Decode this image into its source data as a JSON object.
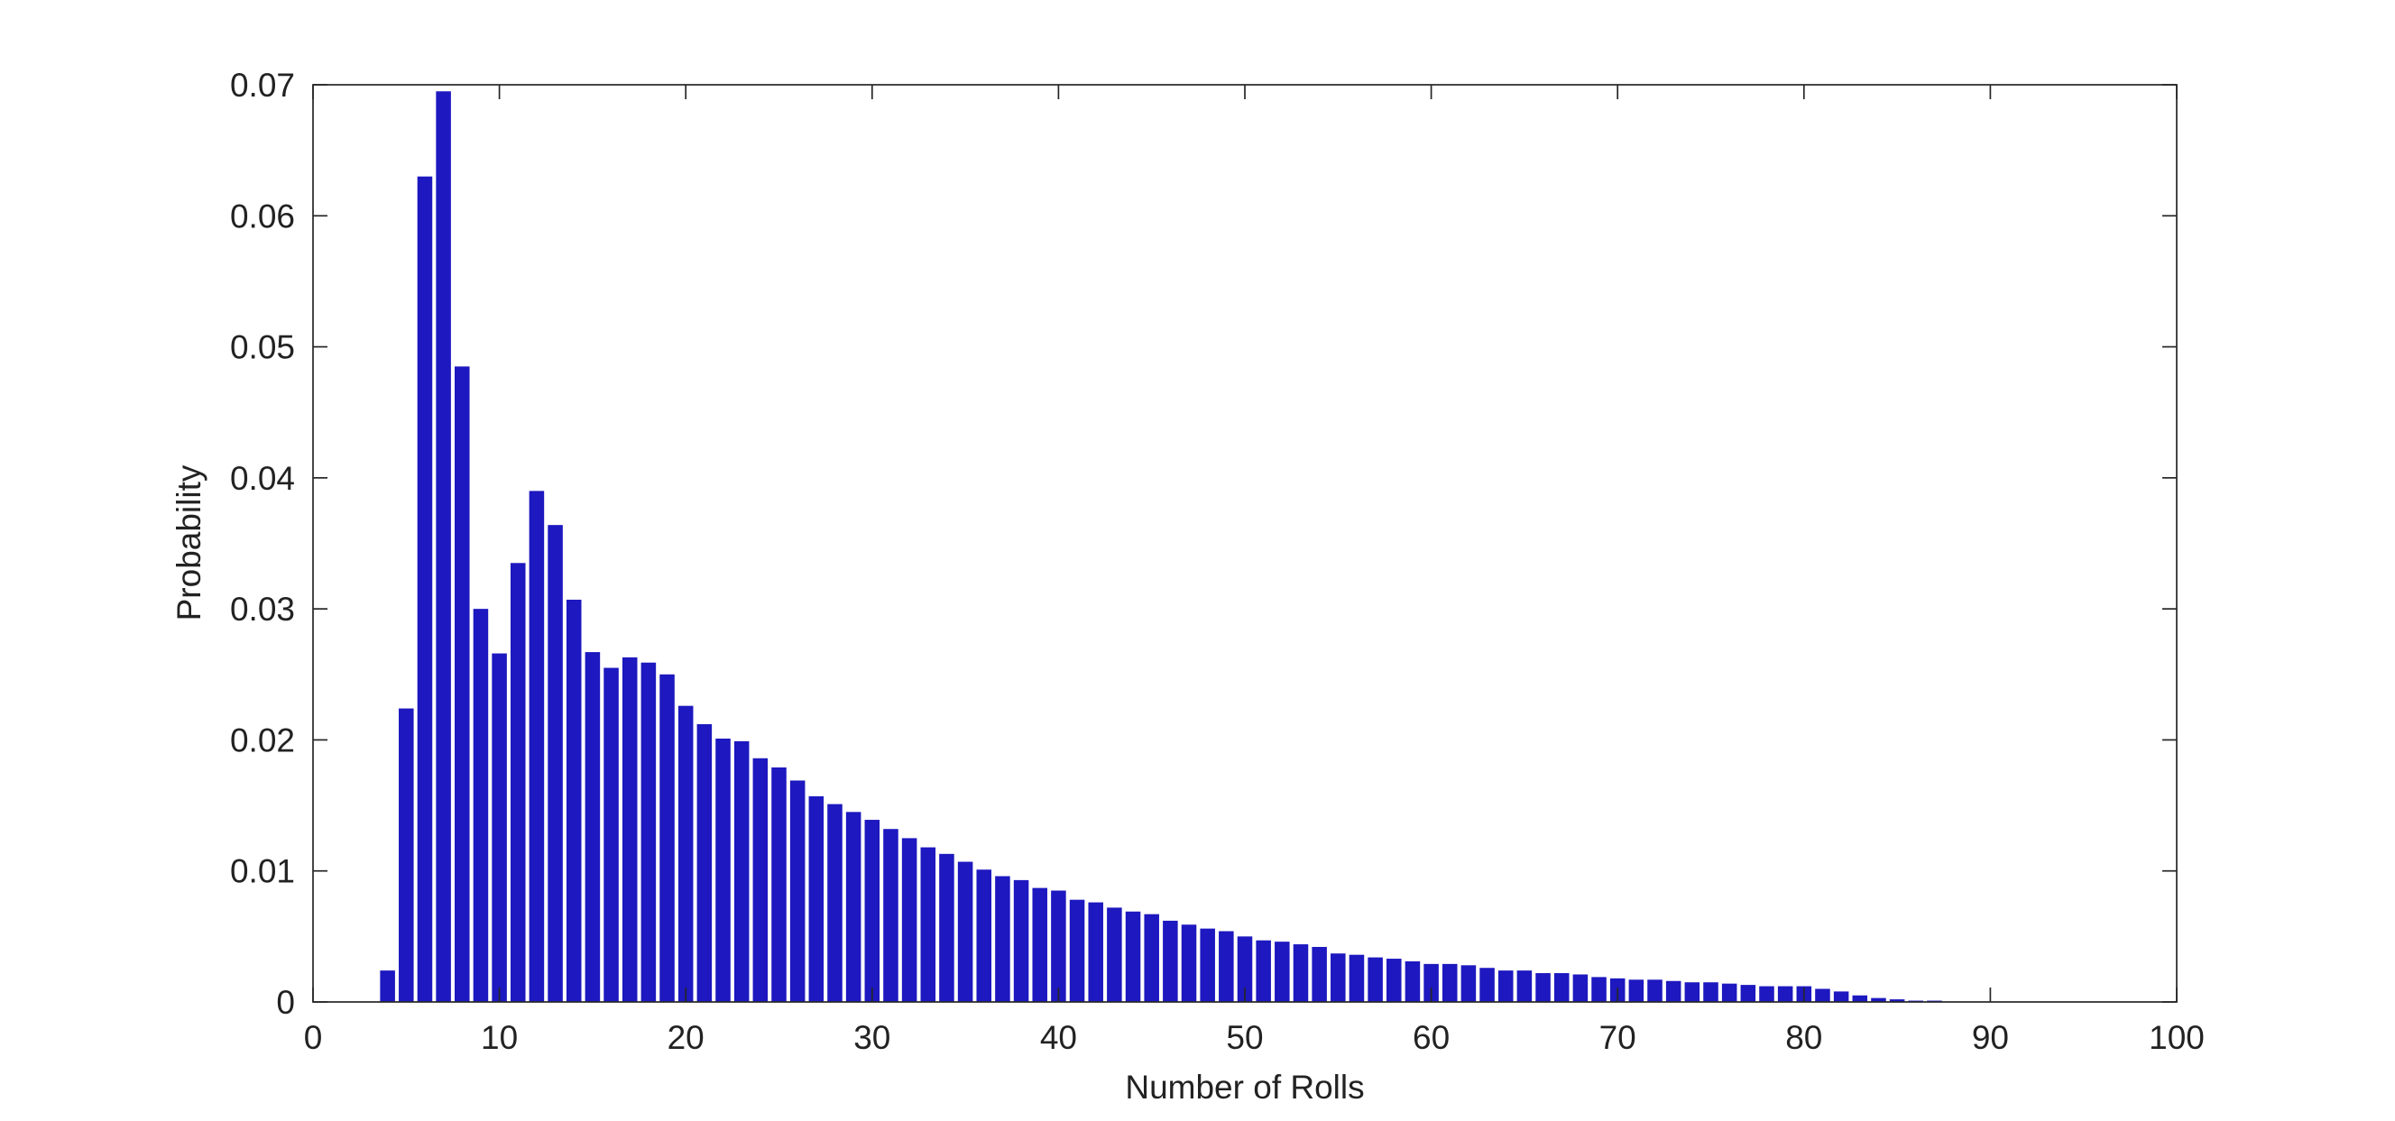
{
  "chart_data": {
    "type": "bar",
    "xlabel": "Number of Rolls",
    "ylabel": "Probability",
    "x": [
      4,
      5,
      6,
      7,
      8,
      9,
      10,
      11,
      12,
      13,
      14,
      15,
      16,
      17,
      18,
      19,
      20,
      21,
      22,
      23,
      24,
      25,
      26,
      27,
      28,
      29,
      30,
      31,
      32,
      33,
      34,
      35,
      36,
      37,
      38,
      39,
      40,
      41,
      42,
      43,
      44,
      45,
      46,
      47,
      48,
      49,
      50,
      51,
      52,
      53,
      54,
      55,
      56,
      57,
      58,
      59,
      60,
      61,
      62,
      63,
      64,
      65,
      66,
      67,
      68,
      69,
      70,
      71,
      72,
      73,
      74,
      75,
      76,
      77,
      78,
      79,
      80,
      81,
      82,
      83,
      84,
      85,
      86,
      87
    ],
    "values": [
      0.0024,
      0.0224,
      0.063,
      0.0695,
      0.0485,
      0.03,
      0.0266,
      0.0335,
      0.039,
      0.0364,
      0.0307,
      0.0267,
      0.0255,
      0.0263,
      0.0259,
      0.025,
      0.0226,
      0.0212,
      0.0201,
      0.0199,
      0.0186,
      0.0179,
      0.0169,
      0.0157,
      0.0151,
      0.0145,
      0.0139,
      0.0132,
      0.0125,
      0.0118,
      0.0113,
      0.0107,
      0.0101,
      0.0096,
      0.0093,
      0.0087,
      0.0085,
      0.0078,
      0.0076,
      0.0072,
      0.0069,
      0.0067,
      0.0062,
      0.0059,
      0.0056,
      0.0054,
      0.005,
      0.0047,
      0.0046,
      0.0044,
      0.0042,
      0.0037,
      0.0036,
      0.0034,
      0.0033,
      0.0031,
      0.0029,
      0.0029,
      0.0028,
      0.0026,
      0.0024,
      0.0024,
      0.0022,
      0.0022,
      0.0021,
      0.0019,
      0.0018,
      0.0017,
      0.0017,
      0.0016,
      0.0015,
      0.0015,
      0.0014,
      0.0013,
      0.0012,
      0.0012,
      0.0012,
      0.001,
      0.0008,
      0.0005,
      0.0003,
      0.0002,
      0.0001,
      0.0001
    ],
    "color": "#1d18bf",
    "xlim": [
      0,
      100
    ],
    "xticks": [
      0,
      10,
      20,
      30,
      40,
      50,
      60,
      70,
      80,
      90,
      100
    ],
    "ylim": [
      0,
      0.07
    ],
    "yticks": [
      0,
      0.01,
      0.02,
      0.03,
      0.04,
      0.05,
      0.06,
      0.07
    ],
    "grid": false
  }
}
